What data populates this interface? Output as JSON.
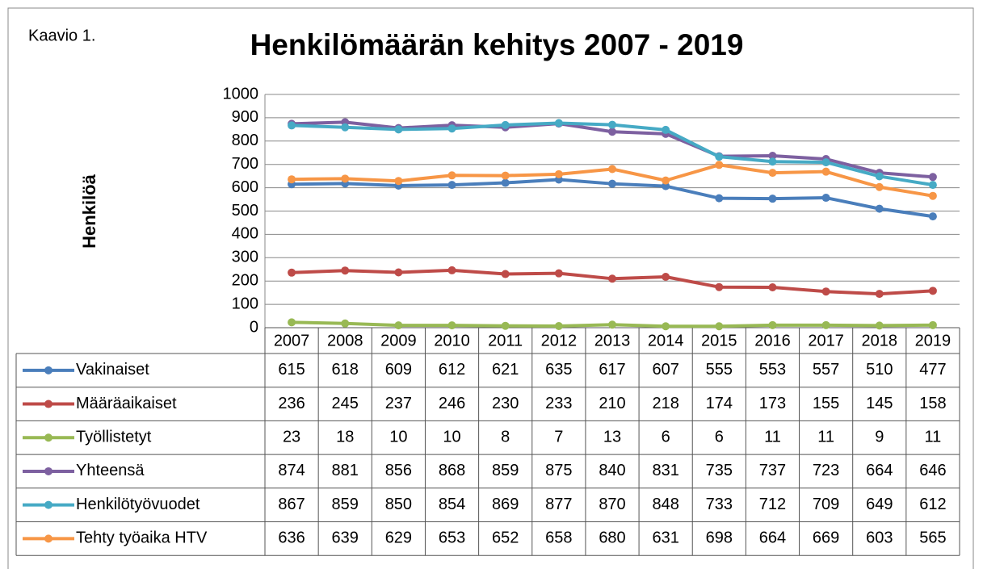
{
  "chart_data": {
    "type": "line",
    "label": "Kaavio 1.",
    "title": "Henkilömäärän kehitys 2007 - 2019",
    "y_label": "Henkilöä",
    "categories": [
      "2007",
      "2008",
      "2009",
      "2010",
      "2011",
      "2012",
      "2013",
      "2014",
      "2015",
      "2016",
      "2017",
      "2018",
      "2019"
    ],
    "ylim": [
      0,
      1000
    ],
    "yticks": [
      0,
      100,
      200,
      300,
      400,
      500,
      600,
      700,
      800,
      900,
      1000
    ],
    "grid": true,
    "data_table": true,
    "series": [
      {
        "name": "Vakinaiset",
        "color": "#4a7ebb",
        "values": [
          615,
          618,
          609,
          612,
          621,
          635,
          617,
          607,
          555,
          553,
          557,
          510,
          477
        ]
      },
      {
        "name": "Määräaikaiset",
        "color": "#be4b48",
        "values": [
          236,
          245,
          237,
          246,
          230,
          233,
          210,
          218,
          174,
          173,
          155,
          145,
          158
        ]
      },
      {
        "name": "Työllistetyt",
        "color": "#98b954",
        "values": [
          23,
          18,
          10,
          10,
          8,
          7,
          13,
          6,
          6,
          11,
          11,
          9,
          11
        ]
      },
      {
        "name": "Yhteensä",
        "color": "#7d60a0",
        "values": [
          874,
          881,
          856,
          868,
          859,
          875,
          840,
          831,
          735,
          737,
          723,
          664,
          646
        ]
      },
      {
        "name": "Henkilötyövuodet",
        "color": "#46aac5",
        "values": [
          867,
          859,
          850,
          854,
          869,
          877,
          870,
          848,
          733,
          712,
          709,
          649,
          612
        ]
      },
      {
        "name": "Tehty työaika HTV",
        "color": "#f79646",
        "values": [
          636,
          639,
          629,
          653,
          652,
          658,
          680,
          631,
          698,
          664,
          669,
          603,
          565
        ]
      }
    ]
  }
}
